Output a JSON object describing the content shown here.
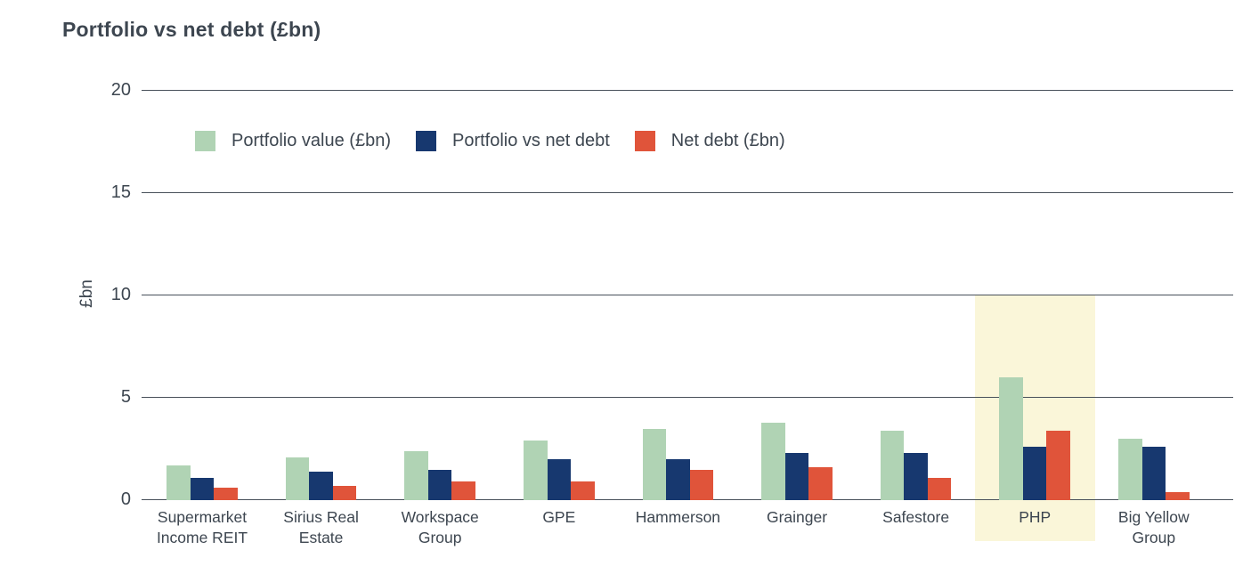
{
  "chart_data": {
    "type": "bar",
    "title": "Portfolio vs net debt (£bn)",
    "xlabel": "",
    "ylabel": "£bn",
    "ylim": [
      0,
      20
    ],
    "yticks": [
      0,
      5,
      10,
      15,
      20
    ],
    "grid": true,
    "legend_position": "top-left-inside",
    "categories": [
      "Supermarket Income REIT",
      "Sirius Real Estate",
      "Workspace Group",
      "GPE",
      "Hammerson",
      "Grainger",
      "Safestore",
      "PHP",
      "Big Yellow Group"
    ],
    "series": [
      {
        "name": "Portfolio value (£bn)",
        "color": "#b0d3b4",
        "values": [
          1.7,
          2.1,
          2.4,
          2.9,
          3.5,
          3.8,
          3.4,
          6.0,
          3.0
        ]
      },
      {
        "name": "Portfolio vs net debt",
        "color": "#17386f",
        "values": [
          1.1,
          1.4,
          1.5,
          2.0,
          2.0,
          2.3,
          2.3,
          2.6,
          2.6
        ]
      },
      {
        "name": "Net debt (£bn)",
        "color": "#e0543a",
        "values": [
          0.6,
          0.7,
          0.9,
          0.9,
          1.5,
          1.6,
          1.1,
          3.4,
          0.4
        ]
      }
    ],
    "highlight": {
      "category": "PHP",
      "color": "#faf6d9"
    }
  },
  "colors": {
    "text": "#3d4650",
    "gridline": "#48505a",
    "background": "#ffffff"
  }
}
